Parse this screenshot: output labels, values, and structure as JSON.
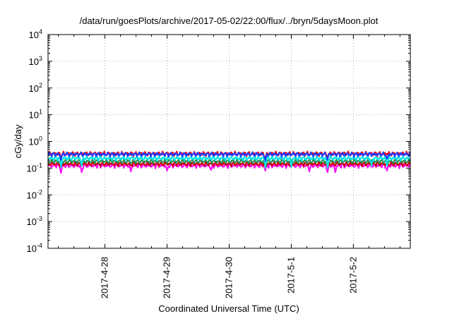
{
  "chart_data": {
    "type": "line",
    "title": "/data/run/goesPlots/archive/2017-05-02/22:00/flux/../bryn/5daysMoon.plot",
    "xlabel": "Coordinated Universal Time (UTC)",
    "ylabel": "cGy/day",
    "y_scale": "log",
    "ylim": [
      0.0001,
      10000
    ],
    "xlim": [
      "2017-04-27T02:00",
      "2017-05-02T22:00"
    ],
    "grid": true,
    "legend": "none",
    "y_ticks": [
      {
        "base": "10",
        "exp": "-4",
        "value": 0.0001
      },
      {
        "base": "10",
        "exp": "-3",
        "value": 0.001
      },
      {
        "base": "10",
        "exp": "-2",
        "value": 0.01
      },
      {
        "base": "10",
        "exp": "-1",
        "value": 0.1
      },
      {
        "base": "10",
        "exp": "0",
        "value": 1
      },
      {
        "base": "10",
        "exp": "1",
        "value": 10
      },
      {
        "base": "10",
        "exp": "2",
        "value": 100
      },
      {
        "base": "10",
        "exp": "3",
        "value": 1000
      },
      {
        "base": "10",
        "exp": "4",
        "value": 10000
      }
    ],
    "x_ticks": [
      {
        "label": "2017-4-28",
        "value": "2017-04-28T00:00"
      },
      {
        "label": "2017-4-29",
        "value": "2017-04-29T00:00"
      },
      {
        "label": "2017-4-30",
        "value": "2017-04-30T00:00"
      },
      {
        "label": "2017-5-1",
        "value": "2017-05-01T00:00"
      },
      {
        "label": "2017-5-2",
        "value": "2017-05-02T00:00"
      }
    ],
    "series": [
      {
        "color": "#ff00ff",
        "base": 0.125,
        "dips": [
          [
            "2017-04-27T07:00",
            0.065
          ],
          [
            "2017-04-27T15:00",
            0.07
          ],
          [
            "2017-04-28T10:00",
            0.075
          ],
          [
            "2017-04-29T00:00",
            0.08
          ],
          [
            "2017-04-29T17:00",
            0.085
          ],
          [
            "2017-04-30T14:00",
            0.08
          ],
          [
            "2017-05-01T07:00",
            0.075
          ],
          [
            "2017-05-01T14:00",
            0.07
          ],
          [
            "2017-05-01T17:00",
            0.07
          ],
          [
            "2017-05-02T13:00",
            0.08
          ]
        ]
      },
      {
        "color": "#cc0000",
        "base": 0.145,
        "dips": [
          [
            "2017-04-27T07:00",
            0.12
          ],
          [
            "2017-04-28T10:00",
            0.125
          ],
          [
            "2017-04-30T14:00",
            0.125
          ],
          [
            "2017-05-01T14:00",
            0.12
          ]
        ]
      },
      {
        "color": "#2e8b57",
        "base": 0.18,
        "dips": [
          [
            "2017-04-27T07:00",
            0.14
          ],
          [
            "2017-04-28T10:00",
            0.15
          ],
          [
            "2017-04-30T14:00",
            0.15
          ],
          [
            "2017-05-01T14:00",
            0.14
          ]
        ]
      },
      {
        "color": "#00e5e5",
        "base": 0.235,
        "dips": [
          [
            "2017-04-27T07:00",
            0.11
          ],
          [
            "2017-04-27T15:00",
            0.12
          ],
          [
            "2017-04-30T14:00",
            0.1
          ],
          [
            "2017-05-01T00:00",
            0.11
          ],
          [
            "2017-05-01T14:00",
            0.1
          ],
          [
            "2017-05-02T07:00",
            0.12
          ],
          [
            "2017-05-02T13:00",
            0.12
          ]
        ]
      },
      {
        "color": "#ff0000",
        "base": 0.35,
        "dips": [
          [
            "2017-04-27T07:00",
            0.25
          ],
          [
            "2017-04-30T14:00",
            0.24
          ],
          [
            "2017-05-01T14:00",
            0.25
          ]
        ]
      },
      {
        "color": "#1e3cff",
        "base": 0.33,
        "dips": [
          [
            "2017-04-27T07:00",
            0.2
          ],
          [
            "2017-04-30T14:00",
            0.19
          ],
          [
            "2017-05-01T14:00",
            0.2
          ],
          [
            "2017-05-02T13:00",
            0.22
          ]
        ]
      }
    ]
  }
}
